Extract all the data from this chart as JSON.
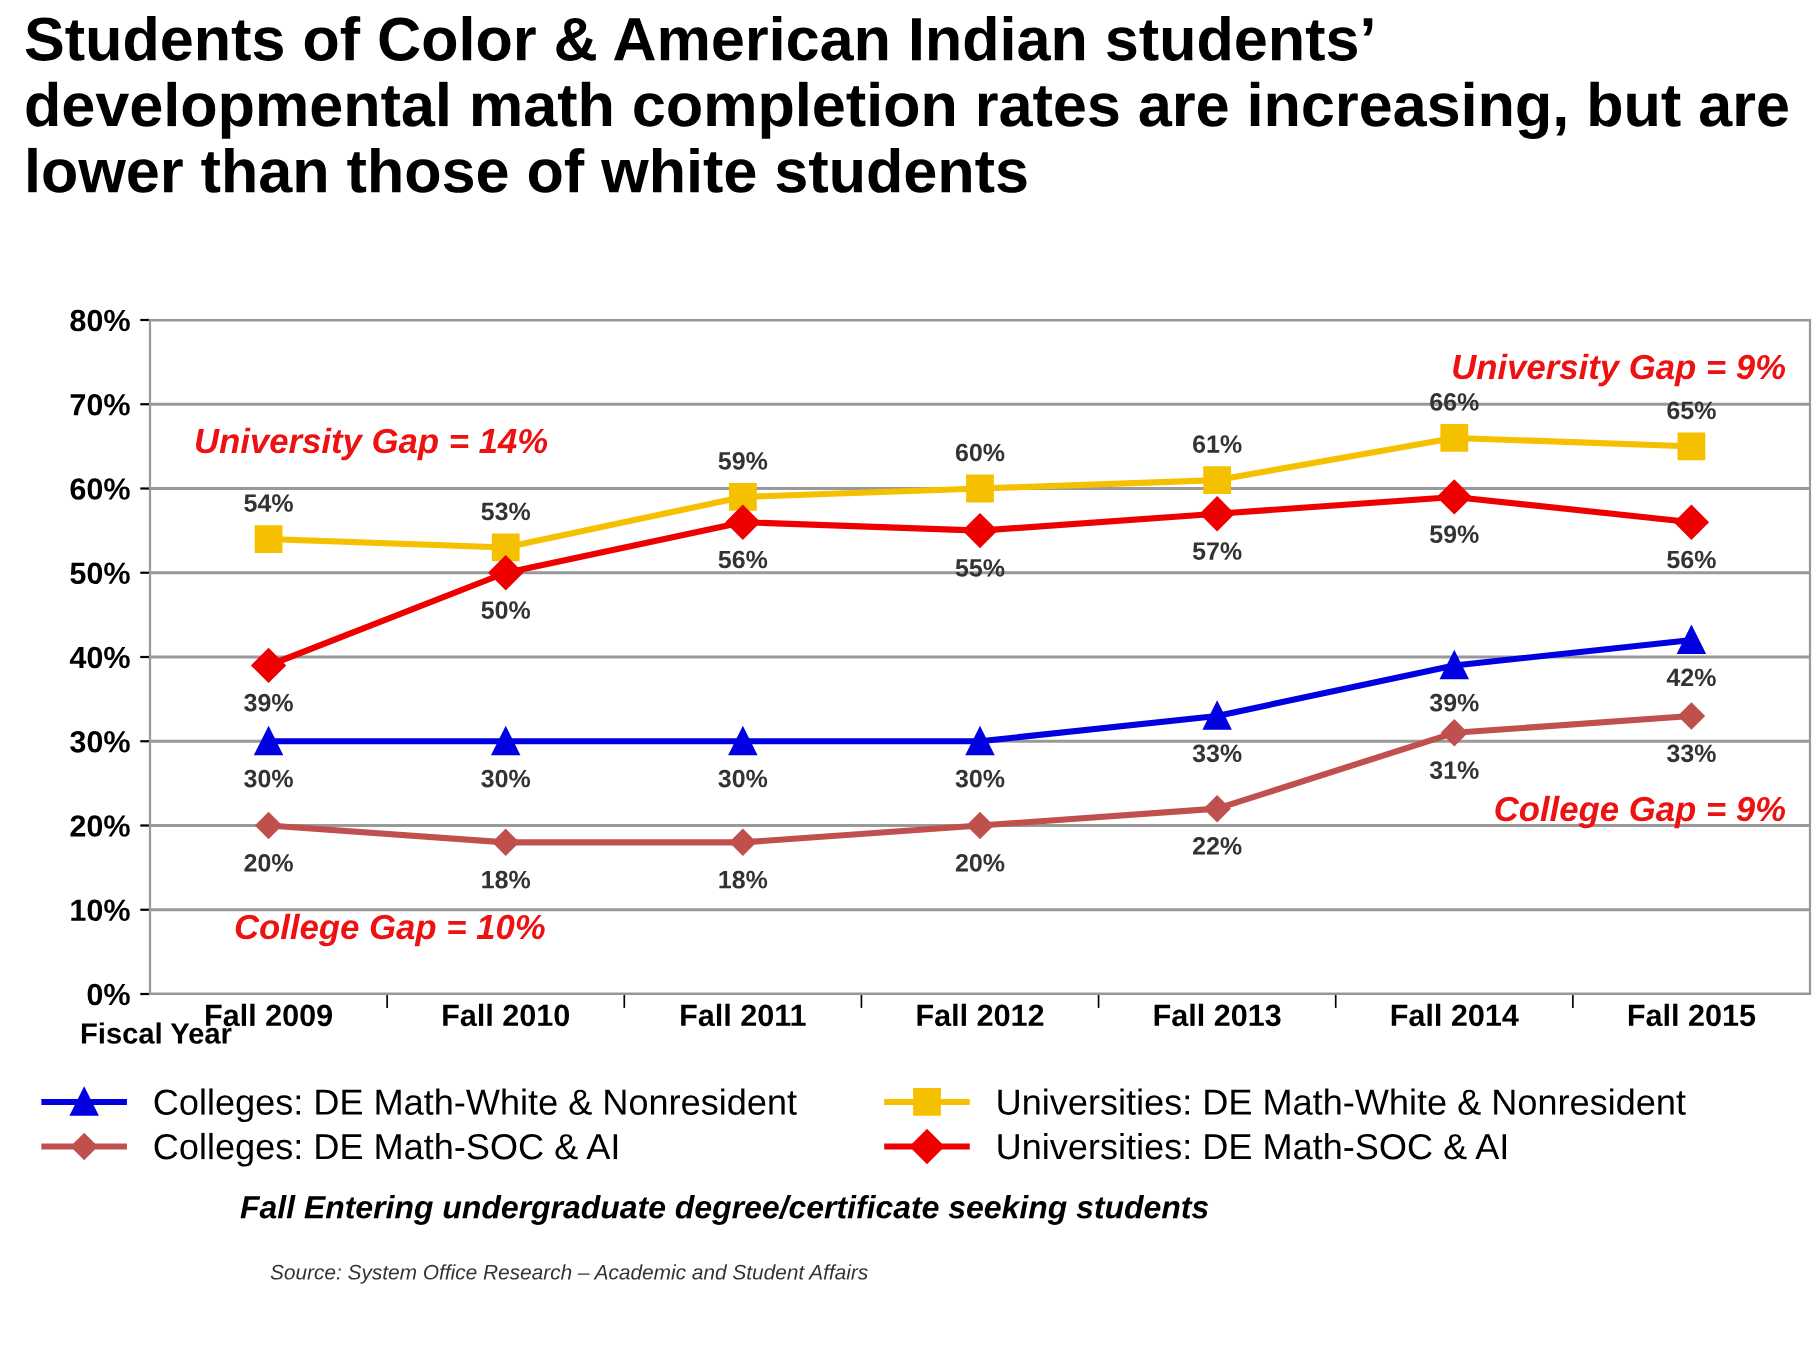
{
  "chart_data": {
    "type": "line",
    "title": "Students of Color & American Indian students’ developmental math completion rates are increasing, but are lower than those of white students",
    "xlabel": "Fiscal Year",
    "categories": [
      "Fall 2009",
      "Fall 2010",
      "Fall 2011",
      "Fall 2012",
      "Fall 2013",
      "Fall 2014",
      "Fall 2015"
    ],
    "series": [
      {
        "name": "Colleges: DE Math-White & Nonresident",
        "color": "#0000e0",
        "marker": "triangle",
        "values": [
          30,
          30,
          30,
          30,
          33,
          39,
          42
        ],
        "value_labels": [
          "30%",
          "30%",
          "30%",
          "30%",
          "33%",
          "39%",
          "42%"
        ]
      },
      {
        "name": "Colleges: DE Math-SOC & AI",
        "color": "#c0504d",
        "marker": "diamond",
        "values": [
          20,
          18,
          18,
          20,
          22,
          31,
          33
        ],
        "value_labels": [
          "20%",
          "18%",
          "18%",
          "20%",
          "22%",
          "31%",
          "33%"
        ]
      },
      {
        "name": "Universities: DE Math-White & Nonresident",
        "color": "#f5c000",
        "marker": "square",
        "values": [
          54,
          53,
          59,
          60,
          61,
          66,
          65
        ],
        "value_labels": [
          "54%",
          "53%",
          "59%",
          "60%",
          "61%",
          "66%",
          "65%"
        ]
      },
      {
        "name": "Universities: DE Math-SOC & AI",
        "color": "#ee0000",
        "marker": "diamond",
        "values": [
          39,
          50,
          56,
          55,
          57,
          59,
          56
        ],
        "value_labels": [
          "39%",
          "50%",
          "56%",
          "55%",
          "57%",
          "59%",
          "56%"
        ]
      }
    ],
    "ylim": [
      0,
      80
    ],
    "yticks": [
      {
        "value": 0,
        "label": "0%"
      },
      {
        "value": 10,
        "label": "10%"
      },
      {
        "value": 20,
        "label": "20%"
      },
      {
        "value": 30,
        "label": "30%"
      },
      {
        "value": 40,
        "label": "40%"
      },
      {
        "value": 50,
        "label": "50%"
      },
      {
        "value": 60,
        "label": "60%"
      },
      {
        "value": 70,
        "label": "70%"
      },
      {
        "value": 80,
        "label": "80%"
      }
    ],
    "grid": "y",
    "legend": "bottom",
    "annotations": [
      "University Gap = 14%",
      "College Gap = 10%",
      "University Gap = 9%",
      "College Gap = 9%",
      "Fall Entering undergraduate degree/certificate seeking students",
      "Source: System Office Research – Academic and Student Affairs"
    ]
  }
}
